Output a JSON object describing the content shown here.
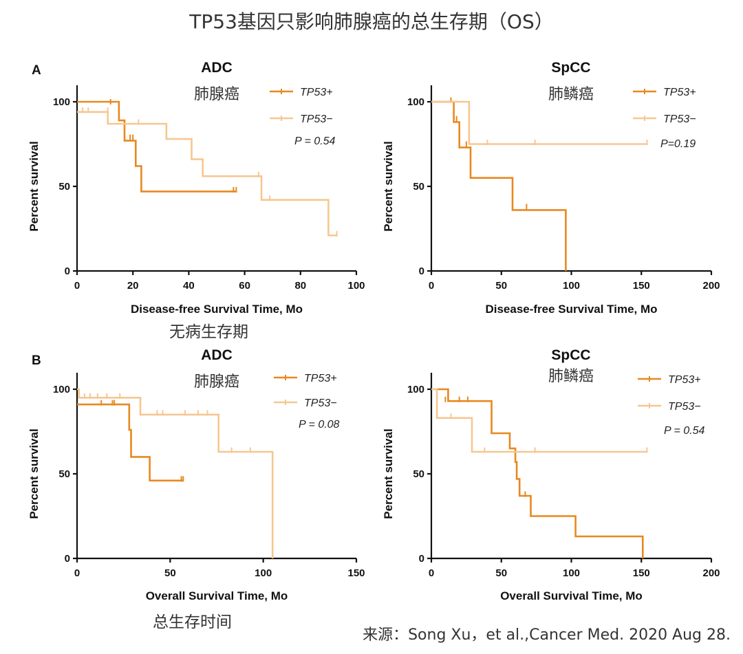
{
  "title": "TP53基因只影响肺腺癌的总生存期（OS）",
  "panel_labels": [
    "A",
    "B"
  ],
  "annotations": {
    "dfs_cn": "无病生存期",
    "os_cn": "总生存时间"
  },
  "source": "来源：Song Xu，et al.,Cancer Med. 2020 Aug 28.",
  "colors": {
    "tp53_pos": "#E8881F",
    "tp53_neg": "#F6C790"
  },
  "chart_data": [
    {
      "type": "line",
      "title": "ADC",
      "subtitle": "肺腺癌",
      "xlabel": "Disease-free Survival Time, Mo",
      "ylabel": "Percent survival",
      "xlim": [
        0,
        100
      ],
      "ylim": [
        0,
        100
      ],
      "xticks": [
        0,
        20,
        40,
        60,
        80,
        100
      ],
      "yticks": [
        0,
        50,
        100
      ],
      "p_value": "P = 0.54",
      "legend": [
        "TP53+",
        "TP53−"
      ],
      "series": [
        {
          "name": "TP53+",
          "step": [
            [
              0,
              100
            ],
            [
              15,
              100
            ],
            [
              15,
              89
            ],
            [
              17,
              89
            ],
            [
              17,
              77
            ],
            [
              21,
              77
            ],
            [
              21,
              62
            ],
            [
              23,
              62
            ],
            [
              23,
              47
            ],
            [
              57,
              47
            ]
          ],
          "censor": [
            [
              12,
              100
            ],
            [
              19,
              79
            ],
            [
              20,
              79
            ],
            [
              56,
              48
            ],
            [
              57,
              48
            ]
          ]
        },
        {
          "name": "TP53−",
          "step": [
            [
              0,
              94
            ],
            [
              11,
              94
            ],
            [
              11,
              87
            ],
            [
              32,
              87
            ],
            [
              32,
              78
            ],
            [
              41,
              78
            ],
            [
              41,
              66
            ],
            [
              45,
              66
            ],
            [
              45,
              56
            ],
            [
              66,
              56
            ],
            [
              66,
              42
            ],
            [
              90,
              42
            ],
            [
              90,
              21
            ],
            [
              93,
              21
            ]
          ],
          "censor": [
            [
              2,
              95
            ],
            [
              4,
              95
            ],
            [
              11,
              95
            ],
            [
              22,
              88
            ],
            [
              65,
              57
            ],
            [
              69,
              43
            ],
            [
              93,
              22
            ]
          ]
        }
      ]
    },
    {
      "type": "line",
      "title": "SpCC",
      "subtitle": "肺鳞癌",
      "xlabel": "Disease-free Survival Time, Mo",
      "ylabel": "Percent survival",
      "xlim": [
        0,
        200
      ],
      "ylim": [
        0,
        100
      ],
      "xticks": [
        0,
        50,
        100,
        150,
        200
      ],
      "yticks": [
        0,
        50,
        100
      ],
      "p_value": "P=0.19",
      "legend": [
        "TP53+",
        "TP53−"
      ],
      "series": [
        {
          "name": "TP53+",
          "step": [
            [
              0,
              100
            ],
            [
              16,
              100
            ],
            [
              16,
              88
            ],
            [
              20,
              88
            ],
            [
              20,
              73
            ],
            [
              28,
              73
            ],
            [
              28,
              55
            ],
            [
              58,
              55
            ],
            [
              58,
              36
            ],
            [
              96,
              36
            ],
            [
              96,
              0
            ]
          ],
          "censor": [
            [
              14,
              101
            ],
            [
              18,
              90
            ],
            [
              25,
              75
            ],
            [
              68,
              38
            ]
          ]
        },
        {
          "name": "TP53−",
          "step": [
            [
              0,
              100
            ],
            [
              27,
              100
            ],
            [
              27,
              75
            ],
            [
              154,
              75
            ]
          ],
          "censor": [
            [
              40,
              76
            ],
            [
              74,
              76
            ],
            [
              154,
              76
            ]
          ]
        }
      ]
    },
    {
      "type": "line",
      "title": "ADC",
      "subtitle": "肺腺癌",
      "xlabel": "Overall Survival Time, Mo",
      "ylabel": "Percent survival",
      "xlim": [
        0,
        150
      ],
      "ylim": [
        0,
        100
      ],
      "xticks": [
        0,
        50,
        100,
        150
      ],
      "yticks": [
        0,
        50,
        100
      ],
      "p_value": "P = 0.08",
      "legend": [
        "TP53+",
        "TP53−"
      ],
      "series": [
        {
          "name": "TP53+",
          "step": [
            [
              0,
              91
            ],
            [
              28,
              91
            ],
            [
              28,
              76
            ],
            [
              29,
              76
            ],
            [
              29,
              60
            ],
            [
              39,
              60
            ],
            [
              39,
              46
            ],
            [
              57,
              46
            ]
          ],
          "censor": [
            [
              13,
              92
            ],
            [
              19,
              92
            ],
            [
              20,
              92
            ],
            [
              56,
              47
            ],
            [
              57,
              47
            ]
          ]
        },
        {
          "name": "TP53−",
          "step": [
            [
              0,
              100
            ],
            [
              1,
              100
            ],
            [
              1,
              95
            ],
            [
              34,
              95
            ],
            [
              34,
              85
            ],
            [
              76,
              85
            ],
            [
              76,
              63
            ],
            [
              105,
              63
            ],
            [
              105,
              0
            ]
          ],
          "censor": [
            [
              4,
              96
            ],
            [
              7,
              96
            ],
            [
              11,
              96
            ],
            [
              16,
              96
            ],
            [
              23,
              96
            ],
            [
              43,
              86
            ],
            [
              46,
              86
            ],
            [
              58,
              86
            ],
            [
              65,
              86
            ],
            [
              70,
              86
            ],
            [
              83,
              64
            ],
            [
              93,
              64
            ]
          ]
        }
      ]
    },
    {
      "type": "line",
      "title": "SpCC",
      "subtitle": "肺鳞癌",
      "xlabel": "Overall Survival Time, Mo",
      "ylabel": "Percent survival",
      "xlim": [
        0,
        200
      ],
      "ylim": [
        0,
        100
      ],
      "xticks": [
        0,
        50,
        100,
        150,
        200
      ],
      "yticks": [
        0,
        50,
        100
      ],
      "p_value": "P = 0.54",
      "legend": [
        "TP53+",
        "TP53−"
      ],
      "series": [
        {
          "name": "TP53+",
          "step": [
            [
              0,
              100
            ],
            [
              12,
              100
            ],
            [
              12,
              93
            ],
            [
              43,
              93
            ],
            [
              43,
              74
            ],
            [
              56,
              74
            ],
            [
              56,
              65
            ],
            [
              60,
              65
            ],
            [
              60,
              57
            ],
            [
              61,
              57
            ],
            [
              61,
              47
            ],
            [
              63,
              47
            ],
            [
              63,
              37
            ],
            [
              71,
              37
            ],
            [
              71,
              25
            ],
            [
              103,
              25
            ],
            [
              103,
              13
            ],
            [
              151,
              13
            ],
            [
              151,
              0
            ]
          ],
          "censor": [
            [
              10,
              94
            ],
            [
              20,
              94
            ],
            [
              26,
              94
            ],
            [
              67,
              38
            ]
          ]
        },
        {
          "name": "TP53−",
          "step": [
            [
              0,
              100
            ],
            [
              4,
              100
            ],
            [
              4,
              83
            ],
            [
              29,
              83
            ],
            [
              29,
              63
            ],
            [
              154,
              63
            ]
          ],
          "censor": [
            [
              14,
              84
            ],
            [
              38,
              64
            ],
            [
              74,
              64
            ],
            [
              154,
              64
            ]
          ]
        }
      ]
    }
  ]
}
